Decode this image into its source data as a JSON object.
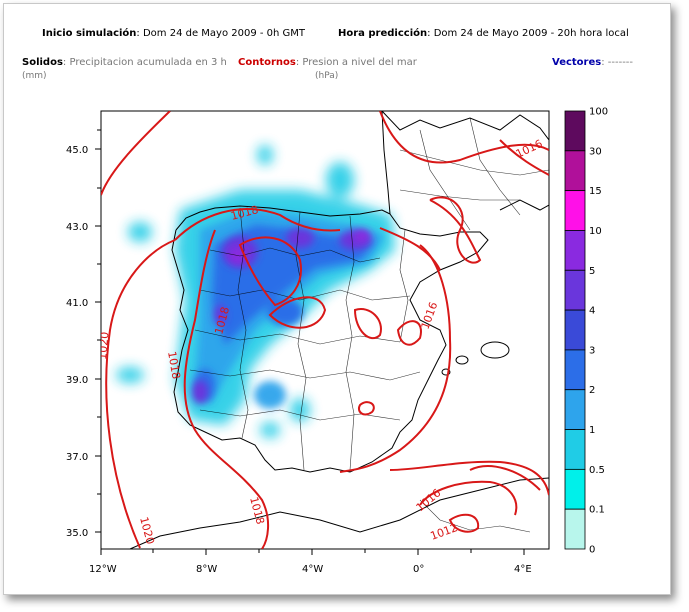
{
  "header": {
    "start_label": "Inicio simulación",
    "start_value": ": Dom 24 de Mayo 2009 - 0h GMT",
    "forecast_label": "Hora predicción",
    "forecast_value": ": Dom 24 de Mayo 2009 - 20h hora local"
  },
  "legend_top": {
    "solidos_label": "Solidos",
    "solidos_value": ": Precipitacion acumulada en 3 h",
    "solidos_unit": "(mm)",
    "contornos_label": "Contornos",
    "contornos_value": ": Presion a nivel del mar",
    "contornos_unit": "(hPa)",
    "vectores_label": "Vectores",
    "vectores_value": ": -------"
  },
  "colors": {
    "contour": "#d81818",
    "solidos": "#000000",
    "contornos": "#cc0000",
    "vectores": "#0000aa",
    "coast": "#000000"
  },
  "map": {
    "lat_ticks": [
      "45.0",
      "43.0",
      "41.0",
      "39.0",
      "37.0",
      "35.0"
    ],
    "lon_ticks": [
      "12°W",
      "8°W",
      "4°W",
      "0°",
      "4°E"
    ],
    "contour_labels": [
      "1018",
      "1018",
      "1020",
      "1018",
      "1016",
      "1016",
      "1018",
      "1016",
      "1012",
      "1020"
    ]
  },
  "colorbar": {
    "levels": [
      "100",
      "30",
      "15",
      "10",
      "5",
      "4",
      "3",
      "2",
      "1",
      "0.5",
      "0.1",
      "0"
    ],
    "colors": [
      "#5e0a5e",
      "#b0109a",
      "#ff10e8",
      "#8a2ae0",
      "#6a36dc",
      "#3a4ad8",
      "#2c6ee8",
      "#2ea4ec",
      "#20cce6",
      "#00f0ea",
      "#b8f6ec",
      "#ffffff"
    ]
  }
}
